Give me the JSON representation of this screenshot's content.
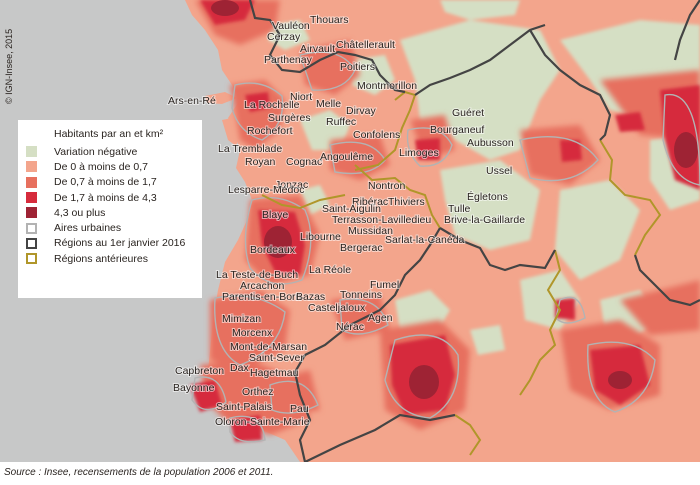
{
  "copyright": "© IGN-Insee, 2015",
  "source": "Source : Insee, recensements de la population 2006 et 2011.",
  "legend": {
    "title": "Habitants par an et km²",
    "items": [
      {
        "label": "Variation négative",
        "kind": "fill",
        "color": "#d5dfc4"
      },
      {
        "label": "De 0 à moins de 0,7",
        "kind": "fill",
        "color": "#f3a58c"
      },
      {
        "label": "De 0,7 à moins de 1,7",
        "kind": "fill",
        "color": "#e7705e"
      },
      {
        "label": "De 1,7 à moins de 4,3",
        "kind": "fill",
        "color": "#d62b3c"
      },
      {
        "label": "4,3 ou plus",
        "kind": "fill",
        "color": "#9e2334"
      },
      {
        "label": "Aires urbaines",
        "kind": "outline",
        "color": "#b3b3b3"
      },
      {
        "label": "Régions au 1er janvier 2016",
        "kind": "outline",
        "color": "#444444"
      },
      {
        "label": "Régions antérieures",
        "kind": "outline",
        "color": "#b0962a"
      }
    ]
  },
  "colors": {
    "sea": "#c7c8c8",
    "negative": "#d5dfc4",
    "low": "#f3a58c",
    "medium": "#e7705e",
    "high": "#d62b3c",
    "very_high": "#9e2334",
    "urban_area": "#b3b3b3",
    "region_2016": "#444444",
    "region_old": "#b0962a"
  },
  "cities": [
    "Vauléon",
    "Thouars",
    "Cerzay",
    "Airvault",
    "Châtellerault",
    "Parthenay",
    "Poitiers",
    "Montmorillon",
    "Ars-en-Ré",
    "La Rochelle",
    "Niort",
    "Melle",
    "Dirvay",
    "Surgères",
    "Ruffec",
    "Confolens",
    "Rochefort",
    "Guéret",
    "Bourganeuf",
    "Aubusson",
    "La Tremblade",
    "Royan",
    "Cognac",
    "Angoulême",
    "Limoges",
    "Ussel",
    "Jonzac",
    "Nontron",
    "Lesparre-Médoc",
    "Ribérac",
    "Thiviers",
    "Égletons",
    "Tulle",
    "Brive-la-Gaillarde",
    "Blaye",
    "Saint-Aigulin",
    "Libourne",
    "Terrasson-Lavilledieu",
    "Bordeaux",
    "Mussidan",
    "Bergerac",
    "Sarlat-la-Canéda",
    "La Teste-de-Buch",
    "Arcachon",
    "La Réole",
    "Fumel",
    "Parentis-en-Born",
    "Mimizan",
    "Bazas",
    "Tonneins",
    "Casteljaloux",
    "Agen",
    "Nérac",
    "Morcenx",
    "Mont-de-Marsan",
    "Saint-Sever",
    "Dax",
    "Hagetmau",
    "Capbreton",
    "Bayonne",
    "Orthez",
    "Saint-Palais",
    "Pau",
    "Oloron-Sainte-Marie"
  ]
}
